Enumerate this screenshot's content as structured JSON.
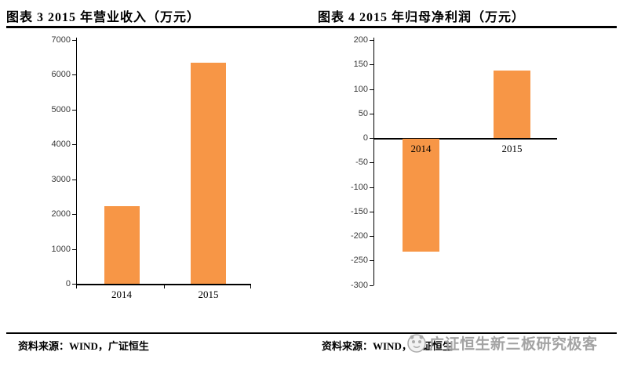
{
  "watermark": {
    "text": "广证恒生新三板研究极客",
    "color": "#a3a3a3"
  },
  "colors": {
    "bar": "#F79646",
    "axis": "#000000"
  },
  "chart_data": [
    {
      "type": "bar",
      "title": "图表 3 2015 年营业收入（万元）",
      "categories": [
        "2014",
        "2015"
      ],
      "values": [
        2230,
        6350
      ],
      "ylim": [
        0,
        7000
      ],
      "ytick_step": 1000,
      "xlabel": "",
      "ylabel": "",
      "grid": false,
      "legend": "none",
      "bar_color": "#F79646",
      "source": "资料来源：WIND，广证恒生"
    },
    {
      "type": "bar",
      "title": "图表 4 2015 年归母净利润（万元）",
      "categories": [
        "2014",
        "2015"
      ],
      "values": [
        -230,
        137
      ],
      "ylim": [
        -300,
        200
      ],
      "ytick_step": 50,
      "xlabel": "",
      "ylabel": "",
      "grid": false,
      "legend": "none",
      "bar_color": "#F79646",
      "source": "资料来源：WIND，广证恒生"
    }
  ]
}
